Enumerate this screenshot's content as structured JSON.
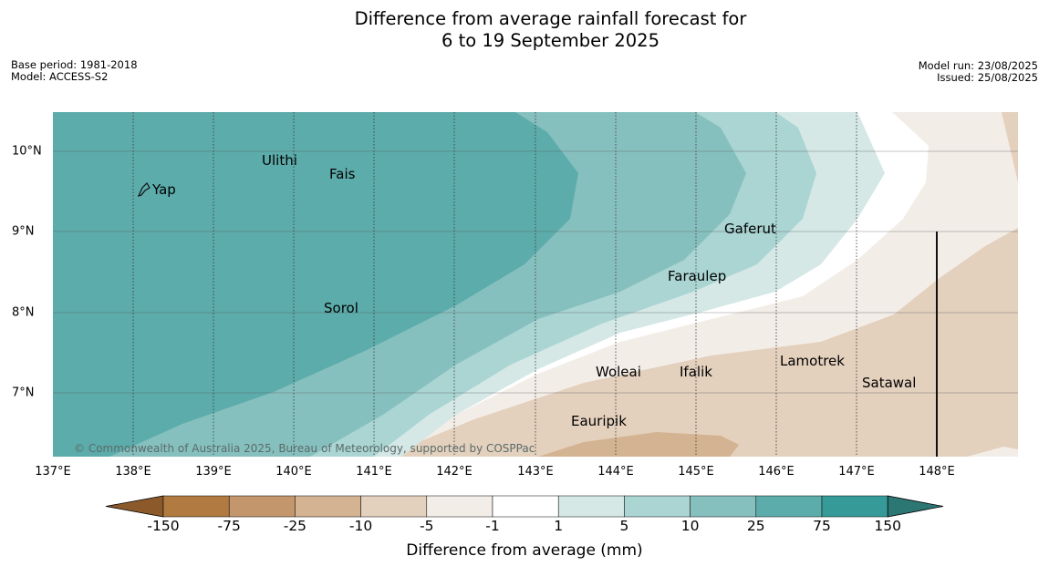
{
  "title": {
    "line1": "Difference from average rainfall forecast for",
    "line2": "6 to 19 September 2025"
  },
  "meta_left": {
    "base_period": "Base period: 1981-2018",
    "model": "Model: ACCESS-S2"
  },
  "meta_right": {
    "model_run": "Model run: 23/08/2025",
    "issued": "Issued: 25/08/2025"
  },
  "map": {
    "x_axis_labels": [
      "137°E",
      "138°E",
      "139°E",
      "140°E",
      "141°E",
      "142°E",
      "143°E",
      "144°E",
      "145°E",
      "146°E",
      "147°E",
      "148°E"
    ],
    "y_axis_labels": [
      "10°N",
      "9°N",
      "8°N",
      "7°N"
    ],
    "places": [
      "Ulithi",
      "Fais",
      "Yap",
      "Gaferut",
      "Faraulep",
      "Sorol",
      "Lamotrek",
      "Woleai",
      "Ifalik",
      "Satawal",
      "Eauripik"
    ],
    "copyright": "© Commonwealth of Australia 2025, Bureau of Meteorology, supported by COSPPac"
  },
  "colorbar": {
    "title": "Difference from average (mm)",
    "labels": [
      "-150",
      "-75",
      "-25",
      "-10",
      "-5",
      "-1",
      "1",
      "5",
      "10",
      "25",
      "75",
      "150"
    ],
    "colors": [
      "#8c5a2a",
      "#b07a40",
      "#c3966b",
      "#d4b392",
      "#e3d0bd",
      "#f3ede8",
      "#ffffff",
      "#d5e8e6",
      "#aad5d3",
      "#86c0be",
      "#5cacab",
      "#359a98",
      "#2c7674"
    ]
  }
}
